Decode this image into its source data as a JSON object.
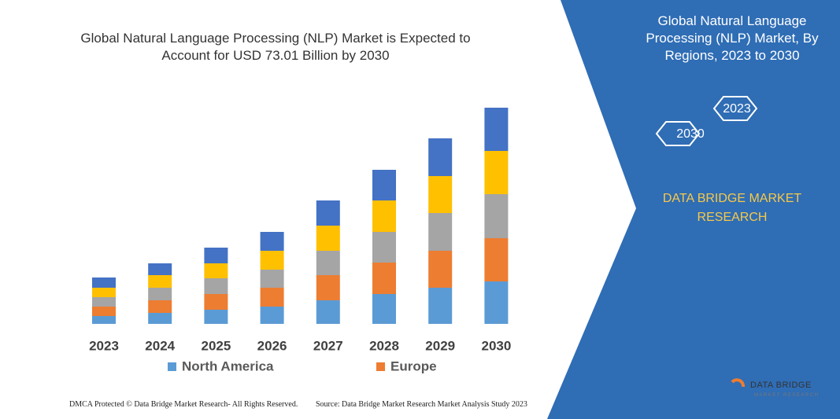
{
  "chart_data": {
    "type": "stacked-bar",
    "title": "Global Natural Language Processing (NLP) Market is Expected to Account for USD 73.01 Billion by 2030",
    "categories": [
      "2023",
      "2024",
      "2025",
      "2026",
      "2027",
      "2028",
      "2029",
      "2030"
    ],
    "series": [
      {
        "name": "North America",
        "color": "#5b9bd5",
        "values": [
          10,
          14,
          18,
          22,
          30,
          38,
          46,
          54
        ]
      },
      {
        "name": "Europe",
        "color": "#ed7d31",
        "values": [
          12,
          16,
          20,
          24,
          32,
          40,
          47,
          55
        ]
      },
      {
        "color": "#a5a5a5",
        "values": [
          12,
          16,
          20,
          23,
          31,
          39,
          48,
          56
        ]
      },
      {
        "color": "#ffc000",
        "values": [
          12,
          16,
          19,
          24,
          32,
          40,
          47,
          55
        ]
      },
      {
        "color": "#4472c4",
        "values": [
          13,
          15,
          20,
          24,
          32,
          39,
          48,
          55
        ]
      }
    ]
  },
  "side_panel": {
    "title": "Global Natural Language Processing (NLP) Market, By Regions, 2023 to 2030",
    "hexagons": [
      "2023",
      "2030"
    ],
    "brand": "DATA BRIDGE MARKET RESEARCH"
  },
  "footer": {
    "left": "DMCA Protected © Data Bridge Market Research- All Rights Reserved.",
    "right": "Source: Data Bridge Market Research  Market Analysis Study 2023"
  },
  "logo": {
    "name": "DATA BRIDGE",
    "tagline": "MARKET RESEARCH"
  }
}
